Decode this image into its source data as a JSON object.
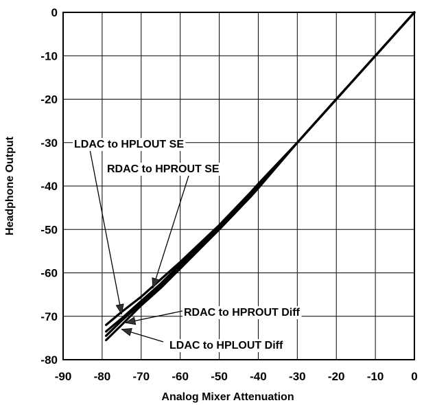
{
  "chart_data": {
    "type": "line",
    "title": "",
    "xlabel": "Analog Mixer Attenuation",
    "ylabel": "Headphone Output",
    "xlim": [
      -90,
      0
    ],
    "ylim": [
      -80,
      0
    ],
    "x_ticks": [
      -90,
      -80,
      -70,
      -60,
      -50,
      -40,
      -30,
      -20,
      -10,
      0
    ],
    "y_ticks": [
      0,
      -10,
      -20,
      -30,
      -40,
      -50,
      -60,
      -70,
      -80
    ],
    "x_tick_labels": [
      "-90",
      "-80",
      "-70",
      "-60",
      "-50",
      "-40",
      "-30",
      "-20",
      "-10",
      "0"
    ],
    "y_tick_labels": [
      "0",
      "-10",
      "-20",
      "-30",
      "-40",
      "-50",
      "-60",
      "-70",
      "-80"
    ],
    "grid": true,
    "legend": "none",
    "series": [
      {
        "name": "LDAC to HPLOUT SE",
        "color": "#000000",
        "x": [
          -79,
          -75,
          -70,
          -65,
          -60,
          -50,
          -42,
          -40,
          -30,
          -20,
          -10,
          0
        ],
        "y": [
          -72,
          -69,
          -65.5,
          -61.5,
          -57.5,
          -49,
          -41.5,
          -39.5,
          -30,
          -20,
          -10,
          0
        ]
      },
      {
        "name": "RDAC to HPROUT SE",
        "color": "#000000",
        "x": [
          -79,
          -75,
          -70,
          -65,
          -60,
          -50,
          -42,
          -40,
          -30,
          -20,
          -10,
          0
        ],
        "y": [
          -73.5,
          -70.5,
          -66.5,
          -62.5,
          -58,
          -49.5,
          -42,
          -40,
          -30,
          -20,
          -10,
          0
        ]
      },
      {
        "name": "RDAC to HPROUT Diff",
        "color": "#000000",
        "x": [
          -79,
          -75,
          -70,
          -65,
          -60,
          -50,
          -42,
          -40,
          -30,
          -20,
          -10,
          0
        ],
        "y": [
          -74.5,
          -71,
          -67,
          -63,
          -58.5,
          -49.5,
          -42,
          -40,
          -30,
          -20,
          -10,
          0
        ]
      },
      {
        "name": "LDAC to HPLOUT Diff",
        "color": "#000000",
        "x": [
          -79,
          -75,
          -70,
          -65,
          -60,
          -50,
          -42,
          -40,
          -30,
          -20,
          -10,
          0
        ],
        "y": [
          -75.5,
          -72,
          -67.5,
          -63.5,
          -59,
          -50,
          -42.5,
          -40.5,
          -30,
          -20,
          -10,
          0
        ]
      }
    ],
    "annotations": [
      {
        "text": "LDAC to HPLOUT SE",
        "target_x": -75,
        "target_y": -69.5
      },
      {
        "text": "RDAC to HPROUT SE",
        "target_x": -67,
        "target_y": -63.5
      },
      {
        "text": "RDAC to HPROUT Diff",
        "target_x": -74,
        "target_y": -71.5
      },
      {
        "text": "LDAC to HPLOUT Diff",
        "target_x": -75,
        "target_y": -73
      }
    ]
  }
}
